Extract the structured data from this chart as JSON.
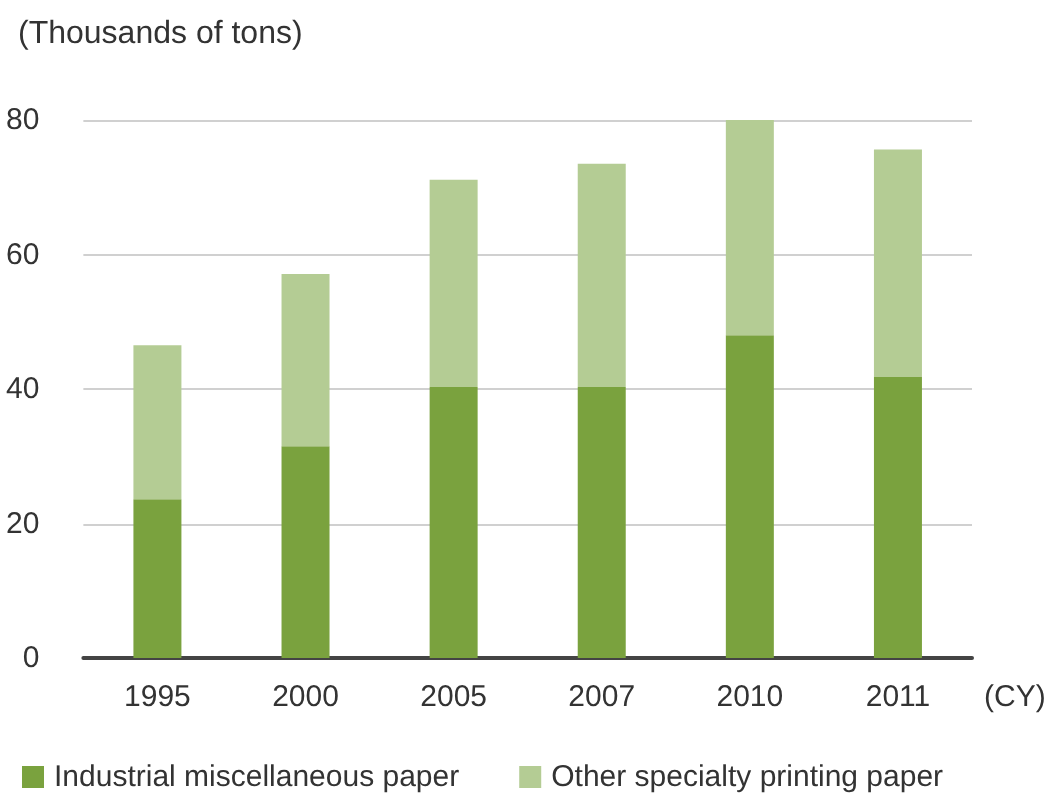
{
  "chart_data": {
    "type": "bar",
    "stacked": true,
    "ylabel": "(Thousands of tons)",
    "xlabel": "(CY)",
    "categories": [
      "1995",
      "2000",
      "2005",
      "2007",
      "2010",
      "2011"
    ],
    "series": [
      {
        "name": "Industrial miscellaneous paper",
        "color": "#7aa23e",
        "values": [
          23.6,
          31.5,
          40.3,
          40.3,
          48.0,
          41.8
        ]
      },
      {
        "name": "Other specialty printing paper",
        "color": "#b4cc94",
        "values": [
          22.9,
          25.6,
          30.8,
          33.2,
          32.0,
          33.8
        ]
      }
    ],
    "ylim": [
      0,
      80
    ],
    "yticks": [
      0,
      20,
      40,
      60,
      80
    ],
    "grid": "y",
    "legend": "bottom left"
  }
}
